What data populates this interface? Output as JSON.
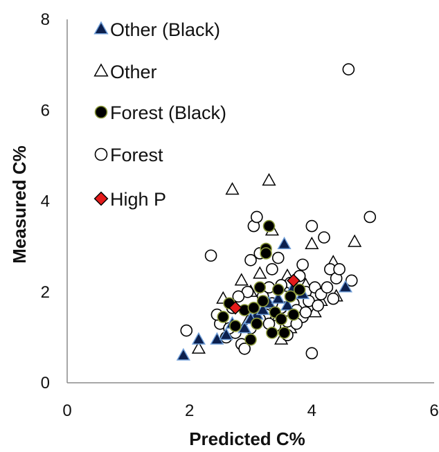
{
  "chart_data": {
    "type": "scatter",
    "title": "",
    "xlabel": "Predicted C%",
    "ylabel": "Measured C%",
    "xlim": [
      0,
      6
    ],
    "ylim": [
      0,
      8
    ],
    "xticks": [
      "0",
      "2",
      "4",
      "6"
    ],
    "yticks": [
      "0",
      "2",
      "4",
      "6",
      "8"
    ],
    "grid": false,
    "legend_position": "top-left",
    "series": [
      {
        "name": "Other (Black)",
        "marker": "triangle-filled",
        "color": "#0b1f4d",
        "edge": "#6f9ed8",
        "points": [
          [
            1.9,
            0.6
          ],
          [
            2.15,
            0.95
          ],
          [
            2.45,
            0.95
          ],
          [
            2.6,
            1.05
          ],
          [
            2.7,
            1.3
          ],
          [
            2.9,
            1.2
          ],
          [
            3.1,
            1.5
          ],
          [
            3.3,
            1.75
          ],
          [
            3.45,
            1.85
          ],
          [
            3.55,
            3.05
          ],
          [
            3.7,
            2.1
          ],
          [
            3.85,
            1.95
          ],
          [
            4.55,
            2.1
          ],
          [
            3.2,
            1.6
          ],
          [
            3.0,
            1.4
          ],
          [
            3.6,
            1.7
          ]
        ]
      },
      {
        "name": "Other",
        "marker": "triangle-open",
        "color": "#ffffff",
        "edge": "#000000",
        "points": [
          [
            2.15,
            0.75
          ],
          [
            2.55,
            1.85
          ],
          [
            2.7,
            4.25
          ],
          [
            2.85,
            2.25
          ],
          [
            3.0,
            2.0
          ],
          [
            3.15,
            2.4
          ],
          [
            3.3,
            4.45
          ],
          [
            3.35,
            3.35
          ],
          [
            3.5,
            0.95
          ],
          [
            3.6,
            2.35
          ],
          [
            3.75,
            2.05
          ],
          [
            3.9,
            2.15
          ],
          [
            4.0,
            3.05
          ],
          [
            4.05,
            1.55
          ],
          [
            4.15,
            1.8
          ],
          [
            4.35,
            2.65
          ],
          [
            4.4,
            1.9
          ],
          [
            4.7,
            3.1
          ],
          [
            3.25,
            1.7
          ],
          [
            2.95,
            1.35
          ],
          [
            3.45,
            1.45
          ],
          [
            3.65,
            1.2
          ]
        ]
      },
      {
        "name": "Forest (Black)",
        "marker": "circle-filled",
        "color": "#000000",
        "edge": "#8c9a3a",
        "points": [
          [
            2.55,
            1.45
          ],
          [
            2.75,
            1.25
          ],
          [
            2.9,
            1.6
          ],
          [
            3.0,
            0.95
          ],
          [
            3.1,
            1.3
          ],
          [
            3.2,
            1.8
          ],
          [
            3.25,
            2.95
          ],
          [
            3.3,
            3.45
          ],
          [
            3.35,
            1.1
          ],
          [
            3.4,
            1.55
          ],
          [
            3.45,
            2.05
          ],
          [
            3.55,
            1.1
          ],
          [
            3.65,
            1.9
          ],
          [
            3.8,
            2.05
          ],
          [
            3.25,
            2.85
          ],
          [
            3.05,
            1.65
          ],
          [
            3.5,
            1.4
          ],
          [
            3.7,
            1.5
          ],
          [
            2.65,
            1.75
          ],
          [
            3.15,
            2.1
          ]
        ]
      },
      {
        "name": "Forest",
        "marker": "circle-open",
        "color": "#ffffff",
        "edge": "#000000",
        "points": [
          [
            1.95,
            1.15
          ],
          [
            2.35,
            2.8
          ],
          [
            2.5,
            1.3
          ],
          [
            2.6,
            1.0
          ],
          [
            2.7,
            1.65
          ],
          [
            2.75,
            1.1
          ],
          [
            2.85,
            0.85
          ],
          [
            2.9,
            0.75
          ],
          [
            2.95,
            2.0
          ],
          [
            3.0,
            1.2
          ],
          [
            3.05,
            3.45
          ],
          [
            3.1,
            3.65
          ],
          [
            3.15,
            2.85
          ],
          [
            3.2,
            1.9
          ],
          [
            3.25,
            1.5
          ],
          [
            3.3,
            2.1
          ],
          [
            3.35,
            2.5
          ],
          [
            3.4,
            1.25
          ],
          [
            3.45,
            2.75
          ],
          [
            3.5,
            1.65
          ],
          [
            3.55,
            1.9
          ],
          [
            3.6,
            1.35
          ],
          [
            3.65,
            2.2
          ],
          [
            3.7,
            1.75
          ],
          [
            3.75,
            1.6
          ],
          [
            3.8,
            2.35
          ],
          [
            3.85,
            1.45
          ],
          [
            3.9,
            2.0
          ],
          [
            3.95,
            1.8
          ],
          [
            4.0,
            3.45
          ],
          [
            4.0,
            0.65
          ],
          [
            4.05,
            2.1
          ],
          [
            4.1,
            1.7
          ],
          [
            4.15,
            1.95
          ],
          [
            4.2,
            3.2
          ],
          [
            4.3,
            2.5
          ],
          [
            4.35,
            1.85
          ],
          [
            4.4,
            2.3
          ],
          [
            4.45,
            2.5
          ],
          [
            4.6,
            6.9
          ],
          [
            4.65,
            2.25
          ],
          [
            4.95,
            3.65
          ],
          [
            2.45,
            1.5
          ],
          [
            2.8,
            1.9
          ],
          [
            3.0,
            2.7
          ],
          [
            3.35,
            1.75
          ],
          [
            3.5,
            2.15
          ],
          [
            3.75,
            1.3
          ],
          [
            3.9,
            1.55
          ],
          [
            4.25,
            2.1
          ],
          [
            3.15,
            1.4
          ],
          [
            3.6,
            1.05
          ],
          [
            3.3,
            1.3
          ],
          [
            2.65,
            1.2
          ],
          [
            3.85,
            2.6
          ]
        ]
      },
      {
        "name": "High P",
        "marker": "diamond-filled",
        "color": "#e41b1b",
        "edge": "#000000",
        "points": [
          [
            2.75,
            1.65
          ],
          [
            3.7,
            2.25
          ]
        ]
      }
    ]
  }
}
